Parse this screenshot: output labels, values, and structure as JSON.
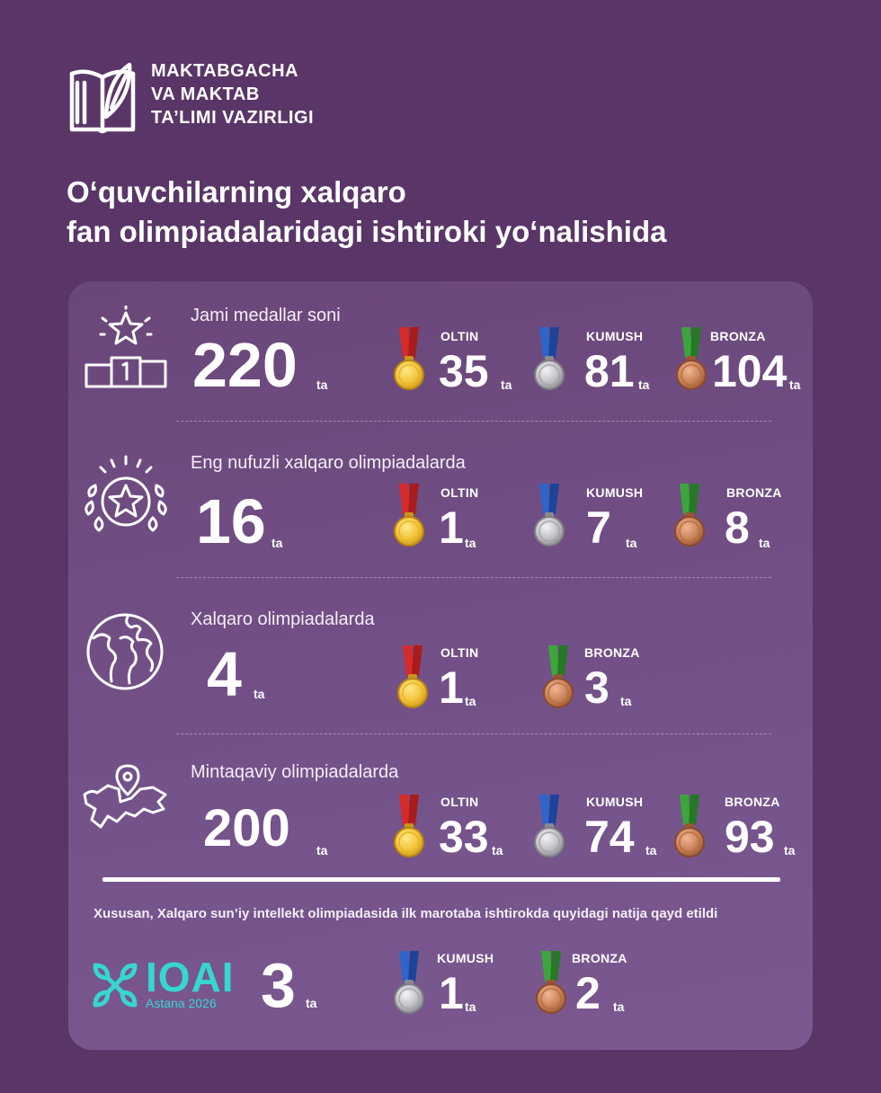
{
  "org": {
    "lines": [
      "MAKTABGACHA",
      "VA MAKTAB",
      "TA’LIMI VAZIRLIGI"
    ],
    "icon": "book-leaf-logo"
  },
  "title": {
    "lines": [
      "O‘quvchilarning xalqaro",
      "fan olimpiadalaridagi ishtiroki yo‘nalishida"
    ]
  },
  "unit": "ta",
  "colors": {
    "background": "#5a3668",
    "panel": "#6f4d84",
    "gold": "#f2c43a",
    "silver": "#bfbfc4",
    "bronze": "#c98159",
    "ioai": "#37d6cf"
  },
  "rows": [
    {
      "icon": "podium-star-icon",
      "label": "Jami medallar soni",
      "total": 220,
      "medals": [
        {
          "type": "gold",
          "name": "OLTIN",
          "count": 35
        },
        {
          "type": "silver",
          "name": "KUMUSH",
          "count": 81
        },
        {
          "type": "bronze",
          "name": "BRONZA",
          "count": 104
        }
      ]
    },
    {
      "icon": "laurel-star-icon",
      "label": "Eng nufuzli xalqaro olimpiadalarda",
      "total": 16,
      "medals": [
        {
          "type": "gold",
          "name": "OLTIN",
          "count": 1
        },
        {
          "type": "silver",
          "name": "KUMUSH",
          "count": 7
        },
        {
          "type": "bronze",
          "name": "BRONZA",
          "count": 8
        }
      ]
    },
    {
      "icon": "globe-icon",
      "label": "Xalqaro olimpiadalarda",
      "total": 4,
      "medals": [
        {
          "type": "gold",
          "name": "OLTIN",
          "count": 1
        },
        {
          "type": "bronze",
          "name": "BRONZA",
          "count": 3
        }
      ]
    },
    {
      "icon": "map-pin-icon",
      "label": "Mintaqaviy olimpiadalarda",
      "total": 200,
      "medals": [
        {
          "type": "gold",
          "name": "OLTIN",
          "count": 33
        },
        {
          "type": "silver",
          "name": "KUMUSH",
          "count": 74
        },
        {
          "type": "bronze",
          "name": "BRONZA",
          "count": 93
        }
      ]
    }
  ],
  "special": {
    "note": "Xususan, Xalqaro sun’iy intellekt olimpiadasida ilk marotaba ishtirokda quyidagi natija qayd etildi",
    "logo_text": "IOAI",
    "logo_sub": "Astana 2026",
    "total": 3,
    "medals": [
      {
        "type": "silver",
        "name": "KUMUSH",
        "count": 1
      },
      {
        "type": "bronze",
        "name": "BRONZA",
        "count": 2
      }
    ]
  }
}
